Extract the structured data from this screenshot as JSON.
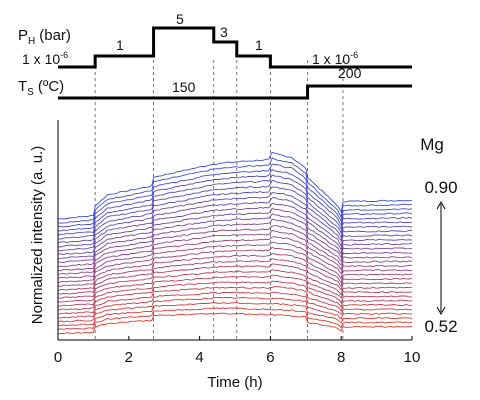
{
  "chart_data": {
    "type": "line",
    "title": "",
    "xlabel": "Time (h)",
    "ylabel": "Normalized intensity (a. u.)",
    "xlim": [
      0,
      10
    ],
    "x_ticks": [
      "0",
      "2",
      "4",
      "6",
      "8",
      "10"
    ],
    "grid": false,
    "event_times_h": [
      1.05,
      2.7,
      4.4,
      5.05,
      6.0,
      7.05,
      8.05
    ],
    "pressure": {
      "label_main": "P",
      "label_sub": "H",
      "label_unit": "(bar)",
      "steps": [
        {
          "from": 0,
          "to": 1.05,
          "level": 0
        },
        {
          "from": 1.05,
          "to": 2.7,
          "level": 1
        },
        {
          "from": 2.7,
          "to": 4.4,
          "level": 3
        },
        {
          "from": 4.4,
          "to": 5.05,
          "level": 2
        },
        {
          "from": 5.05,
          "to": 6.0,
          "level": 1
        },
        {
          "from": 6.0,
          "to": 10,
          "level": 0
        }
      ],
      "labels": {
        "base_left": "1 x 10",
        "base_left_exp": "-6",
        "step1": "1",
        "step5": "5",
        "step3": "3",
        "step1b": "1",
        "base_right": "1 x 10",
        "base_right_exp": "-6"
      }
    },
    "temperature": {
      "label_main": "T",
      "label_sub": "S",
      "label_unit": "(ºC)",
      "steps": [
        {
          "from": 0,
          "to": 7.05,
          "level": 0
        },
        {
          "from": 7.05,
          "to": 10,
          "level": 1
        }
      ],
      "low_label": "150",
      "high_label": "200"
    },
    "series_count": 30,
    "series_colors": {
      "top": "#3a4fd8",
      "bottom": "#e03b30"
    },
    "series_profile": {
      "time_h": [
        0,
        1.0,
        1.05,
        1.4,
        2.65,
        2.7,
        4.4,
        5.05,
        5.95,
        6.05,
        6.6,
        7.0,
        7.05,
        7.9,
        8.0,
        8.05,
        10
      ],
      "top_series": [
        0.55,
        0.565,
        0.61,
        0.66,
        0.7,
        0.74,
        0.8,
        0.81,
        0.82,
        0.85,
        0.83,
        0.78,
        0.74,
        0.61,
        0.58,
        0.63,
        0.635
      ],
      "bottom_series": [
        0.03,
        0.035,
        0.06,
        0.075,
        0.09,
        0.11,
        0.12,
        0.12,
        0.115,
        0.115,
        0.11,
        0.105,
        0.08,
        0.055,
        0.04,
        0.06,
        0.06
      ]
    },
    "mg_axis": {
      "title": "Mg",
      "top_label": "0.90",
      "bottom_label": "0.52"
    }
  }
}
